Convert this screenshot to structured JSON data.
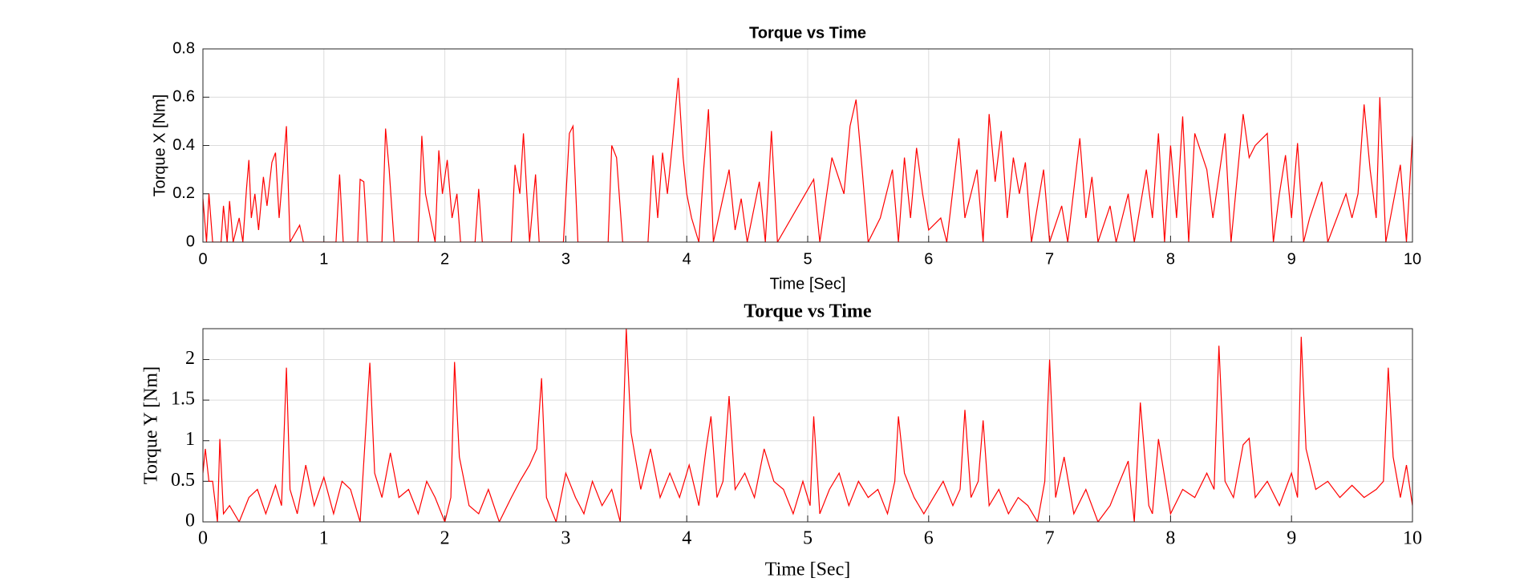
{
  "chart_data": [
    {
      "type": "line",
      "title": "Torque vs Time",
      "xlabel": "Time [Sec]",
      "ylabel": "Torque X [Nm]",
      "xlim": [
        0,
        10
      ],
      "xticks": [
        0,
        1,
        2,
        3,
        4,
        5,
        6,
        7,
        8,
        9,
        10
      ],
      "ylim": [
        0,
        0.8
      ],
      "yticks": [
        0,
        0.2,
        0.4,
        0.6,
        0.8
      ],
      "grid": true,
      "series": [
        {
          "color": "#ff0000",
          "x": [
            0,
            0.03,
            0.05,
            0.08,
            0.15,
            0.17,
            0.2,
            0.22,
            0.25,
            0.3,
            0.33,
            0.36,
            0.38,
            0.4,
            0.43,
            0.46,
            0.5,
            0.53,
            0.57,
            0.6,
            0.63,
            0.66,
            0.69,
            0.72,
            0.8,
            0.83,
            1.1,
            1.13,
            1.16,
            1.28,
            1.3,
            1.33,
            1.36,
            1.48,
            1.51,
            1.54,
            1.58,
            1.78,
            1.81,
            1.84,
            1.88,
            1.92,
            1.95,
            1.98,
            2.02,
            2.06,
            2.1,
            2.13,
            2.25,
            2.28,
            2.31,
            2.55,
            2.58,
            2.62,
            2.65,
            2.7,
            2.75,
            2.78,
            2.98,
            3.03,
            3.06,
            3.1,
            3.35,
            3.38,
            3.42,
            3.47,
            3.68,
            3.72,
            3.76,
            3.8,
            3.84,
            3.88,
            3.93,
            3.97,
            4.0,
            4.04,
            4.1,
            4.14,
            4.18,
            4.22,
            4.35,
            4.4,
            4.45,
            4.5,
            4.6,
            4.65,
            4.7,
            4.75,
            5.05,
            5.1,
            5.2,
            5.3,
            5.35,
            5.4,
            5.45,
            5.5,
            5.6,
            5.7,
            5.75,
            5.8,
            5.85,
            5.9,
            5.95,
            6.0,
            6.1,
            6.15,
            6.25,
            6.3,
            6.4,
            6.45,
            6.5,
            6.55,
            6.6,
            6.65,
            6.7,
            6.75,
            6.8,
            6.85,
            6.95,
            7.0,
            7.1,
            7.15,
            7.25,
            7.3,
            7.35,
            7.4,
            7.5,
            7.55,
            7.65,
            7.7,
            7.8,
            7.85,
            7.9,
            7.95,
            8.0,
            8.05,
            8.1,
            8.15,
            8.2,
            8.3,
            8.35,
            8.45,
            8.5,
            8.6,
            8.65,
            8.7,
            8.8,
            8.85,
            8.9,
            8.95,
            9.0,
            9.05,
            9.1,
            9.15,
            9.25,
            9.3,
            9.45,
            9.5,
            9.55,
            9.6,
            9.65,
            9.7,
            9.73,
            9.78,
            9.9,
            9.95,
            10
          ],
          "values": [
            0.18,
            0,
            0.2,
            0,
            0,
            0.15,
            0,
            0.17,
            0,
            0.1,
            0,
            0.22,
            0.34,
            0.1,
            0.2,
            0.05,
            0.27,
            0.15,
            0.33,
            0.37,
            0.1,
            0.28,
            0.48,
            0,
            0.07,
            0,
            0,
            0.28,
            0,
            0,
            0.26,
            0.25,
            0,
            0,
            0.47,
            0.3,
            0,
            0,
            0.44,
            0.2,
            0.1,
            0,
            0.38,
            0.2,
            0.34,
            0.1,
            0.2,
            0,
            0,
            0.22,
            0,
            0,
            0.32,
            0.2,
            0.45,
            0,
            0.28,
            0,
            0,
            0.45,
            0.48,
            0,
            0,
            0.4,
            0.35,
            0,
            0,
            0.36,
            0.1,
            0.37,
            0.2,
            0.4,
            0.68,
            0.35,
            0.2,
            0.1,
            0,
            0.3,
            0.55,
            0,
            0.3,
            0.05,
            0.18,
            0,
            0.25,
            0,
            0.46,
            0,
            0.26,
            0,
            0.35,
            0.2,
            0.48,
            0.59,
            0.3,
            0,
            0.1,
            0.3,
            0,
            0.35,
            0.1,
            0.39,
            0.2,
            0.05,
            0.1,
            0,
            0.43,
            0.1,
            0.3,
            0,
            0.53,
            0.25,
            0.46,
            0.1,
            0.35,
            0.2,
            0.33,
            0,
            0.3,
            0,
            0.15,
            0,
            0.43,
            0.1,
            0.27,
            0,
            0.15,
            0,
            0.2,
            0,
            0.3,
            0.1,
            0.45,
            0,
            0.4,
            0.1,
            0.52,
            0,
            0.45,
            0.3,
            0.1,
            0.45,
            0,
            0.53,
            0.35,
            0.4,
            0.45,
            0,
            0.2,
            0.36,
            0.1,
            0.41,
            0,
            0.1,
            0.25,
            0,
            0.2,
            0.1,
            0.2,
            0.57,
            0.3,
            0.1,
            0.6,
            0,
            0.32,
            0,
            0.44
          ]
        }
      ]
    },
    {
      "type": "line",
      "title": "Torque vs Time",
      "xlabel": "Time [Sec]",
      "ylabel": "Torque Y [Nm]",
      "xlim": [
        0,
        10
      ],
      "xticks": [
        0,
        1,
        2,
        3,
        4,
        5,
        6,
        7,
        8,
        9,
        10
      ],
      "ylim": [
        0,
        2.38
      ],
      "yticks": [
        0,
        0.5,
        1,
        1.5,
        2
      ],
      "grid": true,
      "series": [
        {
          "color": "#ff0000",
          "x": [
            0,
            0.02,
            0.05,
            0.08,
            0.12,
            0.14,
            0.17,
            0.22,
            0.3,
            0.38,
            0.45,
            0.52,
            0.6,
            0.65,
            0.69,
            0.72,
            0.78,
            0.85,
            0.92,
            1.0,
            1.08,
            1.15,
            1.22,
            1.3,
            1.38,
            1.42,
            1.48,
            1.55,
            1.62,
            1.7,
            1.78,
            1.85,
            1.92,
            2.0,
            2.05,
            2.08,
            2.12,
            2.2,
            2.28,
            2.36,
            2.45,
            2.55,
            2.62,
            2.7,
            2.76,
            2.8,
            2.84,
            2.92,
            3.0,
            3.08,
            3.15,
            3.22,
            3.3,
            3.38,
            3.45,
            3.5,
            3.54,
            3.62,
            3.7,
            3.78,
            3.86,
            3.94,
            4.02,
            4.1,
            4.16,
            4.2,
            4.25,
            4.3,
            4.35,
            4.4,
            4.48,
            4.56,
            4.64,
            4.72,
            4.8,
            4.88,
            4.96,
            5.02,
            5.05,
            5.1,
            5.18,
            5.26,
            5.34,
            5.42,
            5.5,
            5.58,
            5.66,
            5.72,
            5.75,
            5.8,
            5.88,
            5.96,
            6.04,
            6.12,
            6.2,
            6.26,
            6.3,
            6.35,
            6.41,
            6.45,
            6.5,
            6.58,
            6.66,
            6.74,
            6.82,
            6.9,
            6.96,
            7.0,
            7.05,
            7.12,
            7.2,
            7.3,
            7.4,
            7.5,
            7.58,
            7.65,
            7.7,
            7.75,
            7.82,
            7.85,
            7.9,
            8.0,
            8.1,
            8.2,
            8.3,
            8.36,
            8.4,
            8.45,
            8.52,
            8.6,
            8.65,
            8.7,
            8.8,
            8.9,
            9.0,
            9.05,
            9.08,
            9.12,
            9.2,
            9.3,
            9.4,
            9.5,
            9.6,
            9.7,
            9.76,
            9.8,
            9.84,
            9.9,
            9.95,
            10
          ],
          "values": [
            0.6,
            0.9,
            0.5,
            0.5,
            0,
            1.02,
            0.1,
            0.2,
            0,
            0.3,
            0.4,
            0.1,
            0.45,
            0.2,
            1.9,
            0.4,
            0.1,
            0.7,
            0.2,
            0.55,
            0.1,
            0.5,
            0.4,
            0,
            1.96,
            0.6,
            0.3,
            0.85,
            0.3,
            0.4,
            0.1,
            0.5,
            0.3,
            0,
            0.3,
            1.97,
            0.8,
            0.2,
            0.1,
            0.4,
            0,
            0.3,
            0.5,
            0.7,
            0.9,
            1.77,
            0.3,
            0,
            0.6,
            0.3,
            0.1,
            0.5,
            0.2,
            0.4,
            0,
            2.38,
            1.1,
            0.4,
            0.9,
            0.3,
            0.6,
            0.3,
            0.7,
            0.2,
            0.9,
            1.3,
            0.3,
            0.5,
            1.55,
            0.4,
            0.6,
            0.3,
            0.9,
            0.5,
            0.4,
            0.1,
            0.5,
            0.2,
            1.3,
            0.1,
            0.4,
            0.6,
            0.2,
            0.5,
            0.3,
            0.4,
            0.1,
            0.5,
            1.3,
            0.6,
            0.3,
            0.1,
            0.3,
            0.5,
            0.2,
            0.4,
            1.38,
            0.3,
            0.5,
            1.25,
            0.2,
            0.4,
            0.1,
            0.3,
            0.2,
            0,
            0.5,
            2.0,
            0.3,
            0.8,
            0.1,
            0.4,
            0,
            0.2,
            0.5,
            0.75,
            0,
            1.47,
            0.2,
            0.1,
            1.02,
            0.1,
            0.4,
            0.3,
            0.6,
            0.4,
            2.17,
            0.5,
            0.3,
            0.95,
            1.03,
            0.3,
            0.5,
            0.2,
            0.6,
            0.3,
            2.28,
            0.9,
            0.4,
            0.5,
            0.3,
            0.45,
            0.3,
            0.4,
            0.5,
            1.9,
            0.8,
            0.3,
            0.7,
            0.2
          ]
        }
      ]
    }
  ]
}
